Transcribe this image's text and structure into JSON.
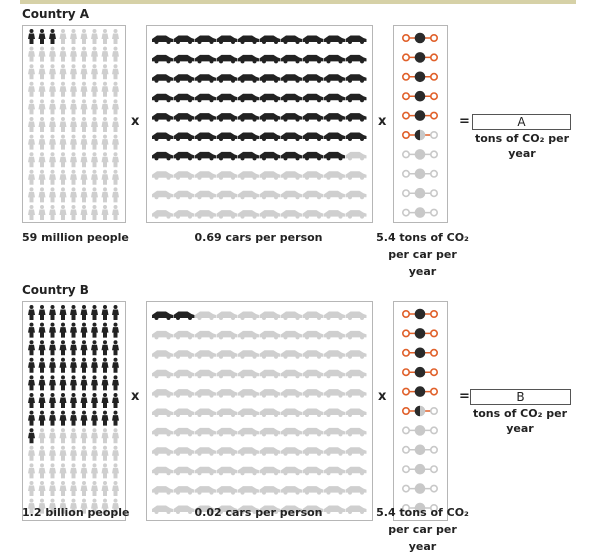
{
  "sections": [
    {
      "title": "Country A",
      "people_caption": "59 million people",
      "cars_caption": "0.69 cars per person",
      "co2_caption_line1": "5.4 tons of CO₂",
      "co2_caption_line2": "per car per year",
      "times_symbol": "x",
      "equals_symbol": "=",
      "answer_label": "A",
      "answer_caption": "tons of CO₂ per year",
      "people_filled_fraction": 0.029,
      "cars_filled_fraction": 0.69,
      "molecules_filled": 5.4
    },
    {
      "title": "Country B",
      "people_caption": "1.2 billion people",
      "cars_caption": "0.02 cars per person",
      "co2_caption_line1": "5.4 tons of CO₂",
      "co2_caption_line2": "per car per year",
      "times_symbol": "x",
      "equals_symbol": "=",
      "answer_label": "B",
      "answer_caption": "tons of CO₂ per year",
      "people_filled_fraction": 0.59,
      "cars_filled_fraction": 0.02,
      "molecules_filled": 5.4
    }
  ],
  "colors": {
    "filled": "#222222",
    "empty": "#cfcfcf",
    "oxygen": "#e0602a",
    "carbon": "#2a2a2a",
    "bond_empty": "#c8c8c8"
  }
}
